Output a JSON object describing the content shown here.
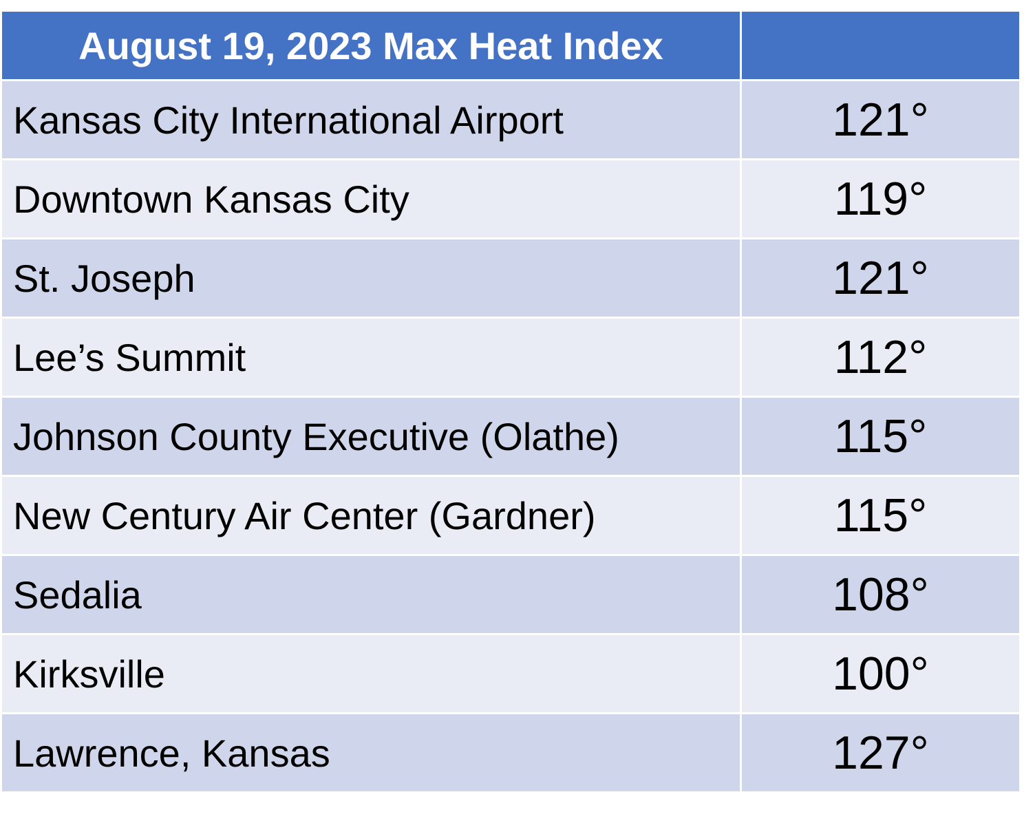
{
  "table": {
    "header": [
      "August 19, 2023 Max Heat Index",
      ""
    ],
    "rows": [
      {
        "location": "Kansas City International Airport",
        "value": "121°"
      },
      {
        "location": "Downtown Kansas City",
        "value": "119°"
      },
      {
        "location": "St. Joseph",
        "value": "121°"
      },
      {
        "location": "Lee’s Summit",
        "value": "112°"
      },
      {
        "location": "Johnson County Executive (Olathe)",
        "value": "115°"
      },
      {
        "location": "New Century Air Center (Gardner)",
        "value": "115°"
      },
      {
        "location": "Sedalia",
        "value": "108°"
      },
      {
        "location": "Kirksville",
        "value": "100°"
      },
      {
        "location": "Lawrence, Kansas",
        "value": "127°"
      }
    ]
  },
  "colors": {
    "header_bg": "#4472c4",
    "row_odd_bg": "#cfd5ea",
    "row_even_bg": "#e9ebf5"
  }
}
